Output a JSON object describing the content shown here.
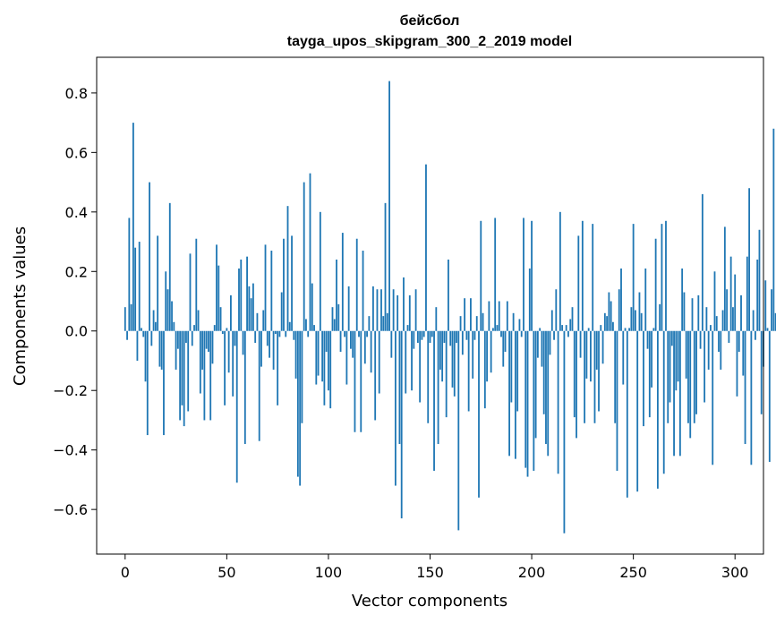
{
  "chart_data": {
    "type": "bar",
    "title_line1": "бейсбол",
    "title_line2": "tayga_upos_skipgram_300_2_2019 model",
    "xlabel": "Vector components",
    "ylabel": "Components values",
    "xlim": [
      -14,
      314
    ],
    "ylim": [
      -0.75,
      0.92
    ],
    "xticks": [
      0,
      50,
      100,
      150,
      200,
      250,
      300
    ],
    "xtick_labels": [
      "0",
      "50",
      "100",
      "150",
      "200",
      "250",
      "300"
    ],
    "yticks": [
      -0.6,
      -0.4,
      -0.2,
      0.0,
      0.2,
      0.4,
      0.6,
      0.8
    ],
    "ytick_labels": [
      "−0.6",
      "−0.4",
      "−0.2",
      "0.0",
      "0.2",
      "0.4",
      "0.6",
      "0.8"
    ],
    "bar_color": "#1f77b4",
    "grid": false,
    "values": [
      0.08,
      -0.03,
      0.38,
      0.09,
      0.7,
      0.28,
      -0.1,
      0.3,
      0.01,
      -0.02,
      -0.17,
      -0.35,
      0.5,
      -0.05,
      0.07,
      0.03,
      0.32,
      -0.12,
      -0.13,
      -0.35,
      0.2,
      0.14,
      0.43,
      0.1,
      0.03,
      -0.13,
      -0.06,
      -0.3,
      -0.25,
      -0.32,
      -0.04,
      -0.27,
      0.26,
      -0.05,
      0.02,
      0.31,
      0.07,
      -0.21,
      -0.13,
      -0.3,
      -0.06,
      -0.07,
      -0.3,
      -0.11,
      0.02,
      0.29,
      0.22,
      0.08,
      -0.01,
      -0.25,
      0.01,
      -0.14,
      0.12,
      -0.22,
      -0.05,
      -0.51,
      0.21,
      0.24,
      -0.08,
      -0.38,
      0.25,
      0.15,
      0.11,
      0.16,
      -0.04,
      0.06,
      -0.37,
      -0.12,
      0.07,
      0.29,
      -0.05,
      -0.09,
      0.27,
      -0.13,
      -0.01,
      -0.25,
      -0.02,
      0.13,
      0.31,
      -0.02,
      0.42,
      0.03,
      0.32,
      -0.03,
      -0.16,
      -0.49,
      -0.52,
      -0.31,
      0.5,
      0.04,
      -0.02,
      0.53,
      0.16,
      0.02,
      -0.18,
      -0.15,
      0.4,
      -0.17,
      -0.25,
      -0.07,
      -0.2,
      -0.26,
      0.08,
      0.04,
      0.24,
      0.09,
      -0.07,
      0.33,
      -0.02,
      -0.18,
      0.15,
      -0.06,
      -0.09,
      -0.34,
      0.31,
      -0.02,
      -0.34,
      0.27,
      -0.11,
      -0.02,
      0.05,
      -0.14,
      0.15,
      -0.3,
      0.14,
      -0.21,
      0.14,
      0.05,
      0.43,
      0.06,
      0.84,
      -0.09,
      0.14,
      -0.52,
      0.12,
      -0.38,
      -0.63,
      0.18,
      -0.21,
      0.02,
      0.12,
      -0.2,
      -0.06,
      0.14,
      -0.04,
      -0.24,
      -0.03,
      -0.02,
      0.56,
      -0.31,
      -0.04,
      -0.02,
      -0.47,
      0.08,
      -0.38,
      -0.13,
      -0.17,
      -0.04,
      -0.29,
      0.24,
      -0.05,
      -0.19,
      -0.22,
      -0.04,
      -0.67,
      0.05,
      -0.08,
      0.11,
      -0.03,
      -0.27,
      0.11,
      -0.16,
      -0.03,
      0.05,
      -0.56,
      0.37,
      0.06,
      -0.26,
      -0.17,
      0.1,
      -0.14,
      0.01,
      0.38,
      0.02,
      0.1,
      -0.02,
      -0.12,
      -0.07,
      0.1,
      -0.42,
      -0.24,
      0.06,
      -0.43,
      -0.27,
      0.04,
      -0.02,
      0.38,
      -0.46,
      -0.49,
      0.21,
      0.37,
      -0.47,
      -0.36,
      -0.09,
      0.01,
      -0.12,
      -0.28,
      -0.38,
      -0.42,
      -0.08,
      0.07,
      -0.03,
      0.14,
      -0.48,
      0.4,
      0.02,
      -0.68,
      0.02,
      -0.02,
      0.04,
      0.08,
      -0.29,
      -0.36,
      0.32,
      -0.09,
      0.37,
      -0.31,
      -0.16,
      0.01,
      -0.17,
      0.36,
      -0.31,
      -0.13,
      -0.27,
      0.02,
      -0.11,
      0.06,
      0.05,
      0.13,
      0.1,
      0.03,
      -0.31,
      -0.47,
      0.14,
      0.21,
      -0.18,
      0.01,
      -0.56,
      0.01,
      0.08,
      0.36,
      0.07,
      -0.54,
      0.13,
      0.06,
      -0.32,
      0.21,
      -0.06,
      -0.29,
      -0.19,
      0.01,
      0.31,
      -0.53,
      0.09,
      0.36,
      -0.48,
      0.37,
      -0.31,
      -0.24,
      -0.05,
      -0.42,
      -0.2,
      -0.17,
      -0.42,
      0.21,
      0.13,
      -0.16,
      -0.31,
      -0.36,
      0.11,
      -0.31,
      -0.28,
      0.12,
      -0.06,
      0.46,
      -0.24,
      0.08,
      -0.13,
      0.02,
      -0.45,
      0.2,
      0.05,
      -0.07,
      -0.13,
      0.07,
      0.35,
      0.14,
      -0.04,
      0.25,
      0.08,
      0.19,
      -0.22,
      -0.07,
      0.12,
      -0.15,
      -0.38,
      0.25,
      0.48,
      -0.45,
      0.07,
      -0.03,
      0.24,
      0.34,
      -0.28,
      -0.12,
      0.17,
      0.01,
      -0.44,
      0.14,
      0.68,
      0.06
    ]
  }
}
